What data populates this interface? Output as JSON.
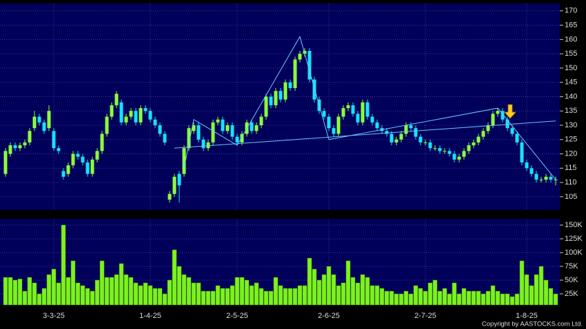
{
  "chart_data": {
    "type": "candlestick",
    "categories": [
      null,
      null,
      null,
      null,
      null,
      null,
      null,
      null,
      null,
      null,
      "3-3-25",
      null,
      null,
      null,
      null,
      null,
      null,
      null,
      null,
      null,
      null,
      null,
      null,
      null,
      null,
      null,
      null,
      null,
      null,
      null,
      "1-4-25",
      null,
      null,
      null,
      null,
      null,
      null,
      null,
      null,
      null,
      null,
      null,
      null,
      null,
      null,
      null,
      null,
      null,
      "2-5-25",
      null,
      null,
      null,
      null,
      null,
      null,
      null,
      null,
      null,
      null,
      null,
      null,
      null,
      null,
      null,
      null,
      null,
      null,
      "2-6-25",
      null,
      null,
      null,
      null,
      null,
      null,
      null,
      null,
      null,
      null,
      null,
      null,
      null,
      null,
      null,
      null,
      null,
      null,
      null,
      "2-7-25",
      null,
      null,
      null,
      null,
      null,
      null,
      null,
      null,
      null,
      null,
      null,
      null,
      null,
      null,
      null,
      null,
      null,
      null,
      null,
      null,
      "1-8-25",
      null,
      null,
      null,
      null,
      null,
      null
    ],
    "open": [
      113,
      120,
      123,
      122,
      123,
      124,
      129,
      133,
      131,
      129,
      128,
      122,
      114,
      113,
      116,
      120,
      119,
      117,
      113,
      118,
      121,
      127,
      133,
      137,
      138,
      131,
      133,
      135,
      131,
      136,
      135,
      132,
      130,
      127,
      104,
      106,
      113,
      113,
      122,
      128,
      130,
      125,
      122,
      124,
      131,
      132,
      128,
      130,
      126,
      124,
      127,
      131,
      128,
      130,
      133,
      140,
      137,
      142,
      139,
      145,
      143,
      153,
      155,
      156,
      146,
      139,
      135,
      133,
      129,
      127,
      133,
      136,
      137,
      134,
      131,
      138,
      133,
      131,
      129,
      128,
      127,
      124,
      125,
      127,
      130,
      129,
      126,
      124,
      124,
      122,
      122,
      121,
      121,
      120,
      118,
      119,
      121,
      123,
      124,
      126,
      128,
      130,
      134,
      135,
      132,
      129,
      127,
      124,
      117,
      115,
      113,
      111,
      111,
      112,
      111
    ],
    "high": [
      122,
      124,
      124,
      124,
      125,
      129,
      135,
      134,
      132,
      137,
      129,
      123,
      115,
      117,
      121,
      121,
      120,
      118,
      119,
      122,
      128,
      134,
      138,
      142,
      139,
      134,
      136,
      136,
      137,
      137,
      136,
      133,
      131,
      128,
      107,
      113,
      114,
      123,
      130,
      131,
      131,
      126,
      125,
      132,
      133,
      133,
      131,
      131,
      127,
      128,
      132,
      132,
      131,
      134,
      141,
      141,
      143,
      143,
      146,
      146,
      154,
      156,
      157,
      157,
      147,
      140,
      136,
      134,
      130,
      134,
      137,
      138,
      138,
      135,
      139,
      139,
      134,
      132,
      130,
      129,
      128,
      126,
      128,
      131,
      131,
      130,
      127,
      125,
      125,
      123,
      123,
      122,
      122,
      121,
      120,
      122,
      124,
      125,
      127,
      129,
      131,
      135,
      136,
      136,
      133,
      130,
      128,
      125,
      118,
      116,
      114,
      112,
      113,
      113,
      112
    ],
    "low": [
      112,
      119,
      121,
      121,
      122,
      123,
      128,
      130,
      127,
      128,
      121,
      120,
      111,
      112,
      115,
      118,
      116,
      112,
      112,
      117,
      120,
      126,
      132,
      136,
      130,
      130,
      132,
      130,
      130,
      134,
      131,
      129,
      126,
      123,
      103,
      105,
      103,
      112,
      121,
      127,
      124,
      121,
      121,
      123,
      130,
      127,
      127,
      125,
      123,
      123,
      126,
      127,
      127,
      129,
      132,
      136,
      136,
      138,
      138,
      142,
      142,
      152,
      154,
      145,
      138,
      134,
      132,
      128,
      126,
      126,
      132,
      135,
      133,
      130,
      130,
      132,
      130,
      128,
      127,
      126,
      123,
      123,
      124,
      126,
      128,
      125,
      123,
      123,
      121,
      121,
      120,
      120,
      119,
      117,
      117,
      118,
      120,
      122,
      123,
      125,
      127,
      129,
      133,
      131,
      128,
      126,
      123,
      116,
      114,
      112,
      110,
      110,
      110,
      110,
      109
    ],
    "close": [
      121,
      123,
      122,
      123,
      124,
      128,
      133,
      131,
      128,
      135,
      122,
      121,
      112,
      116,
      120,
      119,
      117,
      113,
      118,
      121,
      127,
      133,
      137,
      141,
      131,
      133,
      135,
      131,
      136,
      135,
      132,
      130,
      127,
      124,
      106,
      112,
      109,
      122,
      129,
      130,
      125,
      122,
      124,
      131,
      132,
      128,
      130,
      126,
      124,
      127,
      131,
      128,
      130,
      133,
      140,
      137,
      142,
      139,
      145,
      143,
      153,
      155,
      156,
      146,
      139,
      135,
      133,
      129,
      127,
      133,
      136,
      137,
      134,
      131,
      138,
      133,
      131,
      129,
      128,
      127,
      124,
      125,
      127,
      130,
      129,
      126,
      124,
      124,
      122,
      122,
      121,
      121,
      120,
      118,
      119,
      121,
      123,
      124,
      126,
      128,
      130,
      134,
      135,
      132,
      129,
      127,
      124,
      117,
      115,
      113,
      111,
      111,
      112,
      111,
      111
    ],
    "volume": [
      55000,
      55000,
      50000,
      52000,
      30000,
      55000,
      45000,
      25000,
      35000,
      60000,
      70000,
      45000,
      150000,
      55000,
      85000,
      45000,
      40000,
      35000,
      30000,
      50000,
      85000,
      55000,
      55000,
      60000,
      80000,
      60000,
      55000,
      45000,
      40000,
      45000,
      40000,
      35000,
      35000,
      25000,
      50000,
      105000,
      75000,
      60000,
      55000,
      45000,
      45000,
      30000,
      30000,
      30000,
      40000,
      35000,
      35000,
      40000,
      55000,
      55000,
      50000,
      40000,
      45000,
      35000,
      30000,
      30000,
      55000,
      40000,
      35000,
      35000,
      35000,
      40000,
      40000,
      90000,
      70000,
      50000,
      60000,
      75000,
      60000,
      40000,
      45000,
      85000,
      55000,
      45000,
      60000,
      55000,
      40000,
      40000,
      35000,
      30000,
      30000,
      25000,
      25000,
      30000,
      25000,
      40000,
      35000,
      30000,
      45000,
      50000,
      30000,
      35000,
      25000,
      45000,
      25000,
      35000,
      30000,
      30000,
      30000,
      25000,
      30000,
      40000,
      30000,
      25000,
      25000,
      20000,
      25000,
      85000,
      60000,
      40000,
      60000,
      75000,
      50000,
      35000,
      25000
    ],
    "up_color": "#8cff3c",
    "down_color": "#19e0ff",
    "volume_color": "#7cf21c",
    "line_color": "#6cc8ff",
    "ylim": [
      100.4,
      172.6
    ],
    "yticks": [
      105,
      110,
      115,
      120,
      125,
      130,
      135,
      140,
      145,
      150,
      155,
      160,
      165,
      170
    ],
    "volume_ylim": [
      5000,
      161250
    ],
    "volume_yticks": [
      {
        "value": 25000,
        "label": "25K"
      },
      {
        "value": 50000,
        "label": "50K"
      },
      {
        "value": 75000,
        "label": "75K"
      },
      {
        "value": 100000,
        "label": "100K"
      },
      {
        "value": 125000,
        "label": "125K"
      },
      {
        "value": 150000,
        "label": "150K"
      }
    ],
    "trend_lines": [
      {
        "x": [
          37,
          39,
          48,
          61,
          67,
          102,
          114
        ],
        "y": [
          115,
          132,
          123,
          161,
          125,
          136,
          111
        ]
      },
      {
        "x": [
          35,
          114
        ],
        "y": [
          122,
          131.5
        ]
      }
    ],
    "copyright": "Copyright by AASTOCKS.com Ltd.",
    "grid": true
  }
}
